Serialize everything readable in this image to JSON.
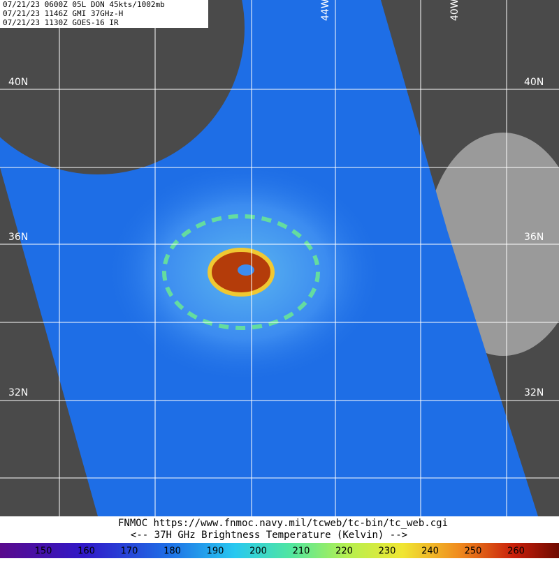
{
  "header": {
    "lines": [
      "07/21/23 0600Z  05L DON 45kts/1002mb",
      "07/21/23 1146Z  GMI 37GHz-H",
      "07/21/23 1130Z  GOES-16 IR"
    ]
  },
  "map": {
    "lat_labels": [
      "40N",
      "36N",
      "32N"
    ],
    "lon_labels": [
      "44W",
      "40W"
    ]
  },
  "footer": {
    "source": "FNMOC  https://www.fnmoc.navy.mil/tcweb/tc-bin/tc_web.cgi",
    "caption": "<--   37H GHz Brightness Temperature (Kelvin)   -->"
  },
  "colorbar": {
    "labels": [
      150,
      160,
      170,
      180,
      190,
      200,
      210,
      220,
      230,
      240,
      250,
      260
    ]
  }
}
